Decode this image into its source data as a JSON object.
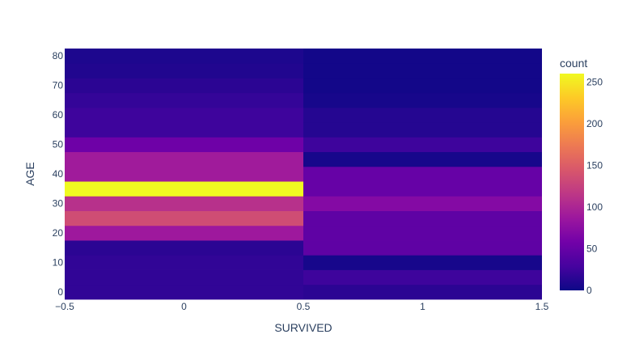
{
  "chart_data": {
    "type": "heatmap",
    "title": "",
    "xlabel": "SURVIVED",
    "ylabel": "AGE",
    "x_edges": [
      -0.5,
      0.5,
      1.5
    ],
    "xlim": [
      -0.5,
      1.5
    ],
    "ylim": [
      -2.5,
      82.5
    ],
    "y_bin_start": -2.5,
    "y_bin_size": 5,
    "x_ticks": [
      {
        "value": -0.5,
        "label": "−0.5"
      },
      {
        "value": 0,
        "label": "0"
      },
      {
        "value": 0.5,
        "label": "0.5"
      },
      {
        "value": 1,
        "label": "1"
      },
      {
        "value": 1.5,
        "label": "1.5"
      }
    ],
    "y_ticks": [
      {
        "value": 0,
        "label": "0"
      },
      {
        "value": 10,
        "label": "10"
      },
      {
        "value": 20,
        "label": "20"
      },
      {
        "value": 30,
        "label": "30"
      },
      {
        "value": 40,
        "label": "40"
      },
      {
        "value": 50,
        "label": "50"
      },
      {
        "value": 60,
        "label": "60"
      },
      {
        "value": 70,
        "label": "70"
      },
      {
        "value": 80,
        "label": "80"
      }
    ],
    "counts": [
      [
        18,
        18,
        18,
        15,
        88,
        135,
        110,
        260,
        90,
        90,
        55,
        25,
        25,
        20,
        15,
        10,
        8
      ],
      [
        15,
        25,
        5,
        45,
        45,
        45,
        70,
        50,
        50,
        5,
        25,
        12,
        12,
        5,
        3,
        3,
        3
      ]
    ],
    "colorscale": [
      "#0d0887",
      "#46039f",
      "#7201a8",
      "#9c179e",
      "#bd3786",
      "#d8576b",
      "#ed7953",
      "#fb9f3a",
      "#fdca26",
      "#f0f921"
    ],
    "zmin": 0,
    "zmax": 260,
    "colorbar": {
      "title": "count",
      "ticks": [
        {
          "value": 0,
          "label": "0"
        },
        {
          "value": 50,
          "label": "50"
        },
        {
          "value": 100,
          "label": "100"
        },
        {
          "value": 150,
          "label": "150"
        },
        {
          "value": 200,
          "label": "200"
        },
        {
          "value": 250,
          "label": "250"
        }
      ]
    }
  }
}
